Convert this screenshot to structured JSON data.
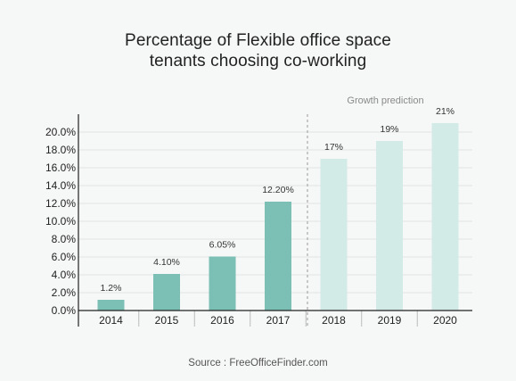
{
  "chart_data": {
    "type": "bar",
    "title_lines": [
      "Percentage of Flexible office space",
      "tenants choosing co-working"
    ],
    "categories": [
      "2014",
      "2015",
      "2016",
      "2017",
      "2018",
      "2019",
      "2020"
    ],
    "values": [
      1.2,
      4.1,
      6.05,
      12.2,
      17,
      19,
      21
    ],
    "data_labels": [
      "1.2%",
      "4.10%",
      "6.05%",
      "12.20%",
      "17%",
      "19%",
      "21%"
    ],
    "prediction_from_index": 4,
    "annotation": "Growth prediction",
    "y_ticks": [
      "0.0%",
      "2.0%",
      "4.0%",
      "6.0%",
      "8.0%",
      "10.0%",
      "12.0%",
      "14.0%",
      "16.0%",
      "18.0%",
      "20.0%"
    ],
    "ylim": [
      0,
      21
    ],
    "grid": true,
    "legend": "none",
    "colors": {
      "actual": "#7bbfb5",
      "prediction": "#d2ebe6",
      "grid": "#e2e4e4",
      "axis": "#222222",
      "divider": "#9a9a9a"
    }
  },
  "source": "Source : FreeOfficeFinder.com"
}
